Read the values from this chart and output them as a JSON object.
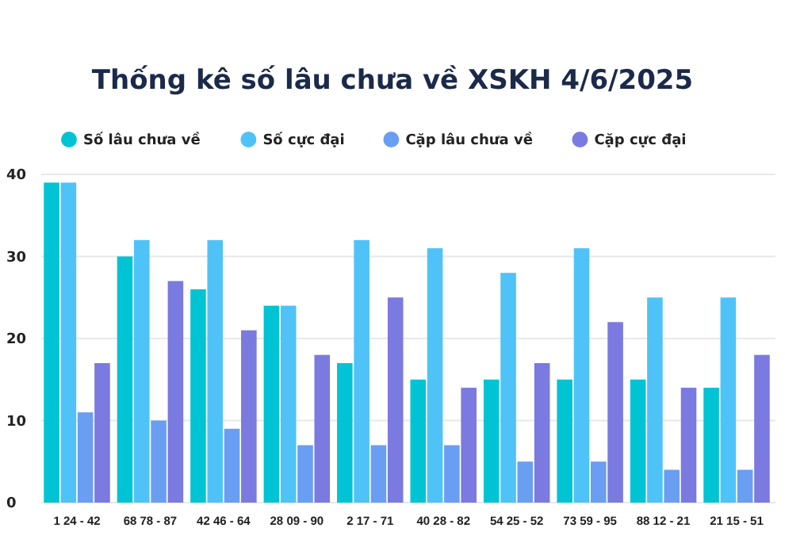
{
  "chart_data": {
    "type": "bar",
    "title": "Thống kê số lâu chưa về XSKH 4/6/2025",
    "categories": [
      "1 24 - 42",
      "68 78 - 87",
      "42 46 - 64",
      "28 09 - 90",
      "2 17 - 71",
      "40 28 - 82",
      "54 25 - 52",
      "73 59 - 95",
      "88 12 - 21",
      "21 15 - 51"
    ],
    "series": [
      {
        "name": "Số lâu chưa về",
        "color": "#00c4d4",
        "values": [
          39,
          30,
          26,
          24,
          17,
          15,
          15,
          15,
          15,
          14
        ]
      },
      {
        "name": "Số cực đại",
        "color": "#4fc3f7",
        "values": [
          39,
          32,
          32,
          24,
          32,
          31,
          28,
          31,
          25,
          25
        ]
      },
      {
        "name": "Cặp lâu chưa về",
        "color": "#6a9ef2",
        "values": [
          11,
          10,
          9,
          7,
          7,
          7,
          5,
          5,
          4,
          4
        ]
      },
      {
        "name": "Cặp cực đại",
        "color": "#7a7ae0",
        "values": [
          17,
          27,
          21,
          18,
          25,
          14,
          17,
          22,
          14,
          18
        ]
      }
    ],
    "ylim": [
      0,
      40
    ],
    "yticks": [
      0,
      10,
      20,
      30,
      40
    ],
    "grid": "y",
    "legend": "top"
  }
}
